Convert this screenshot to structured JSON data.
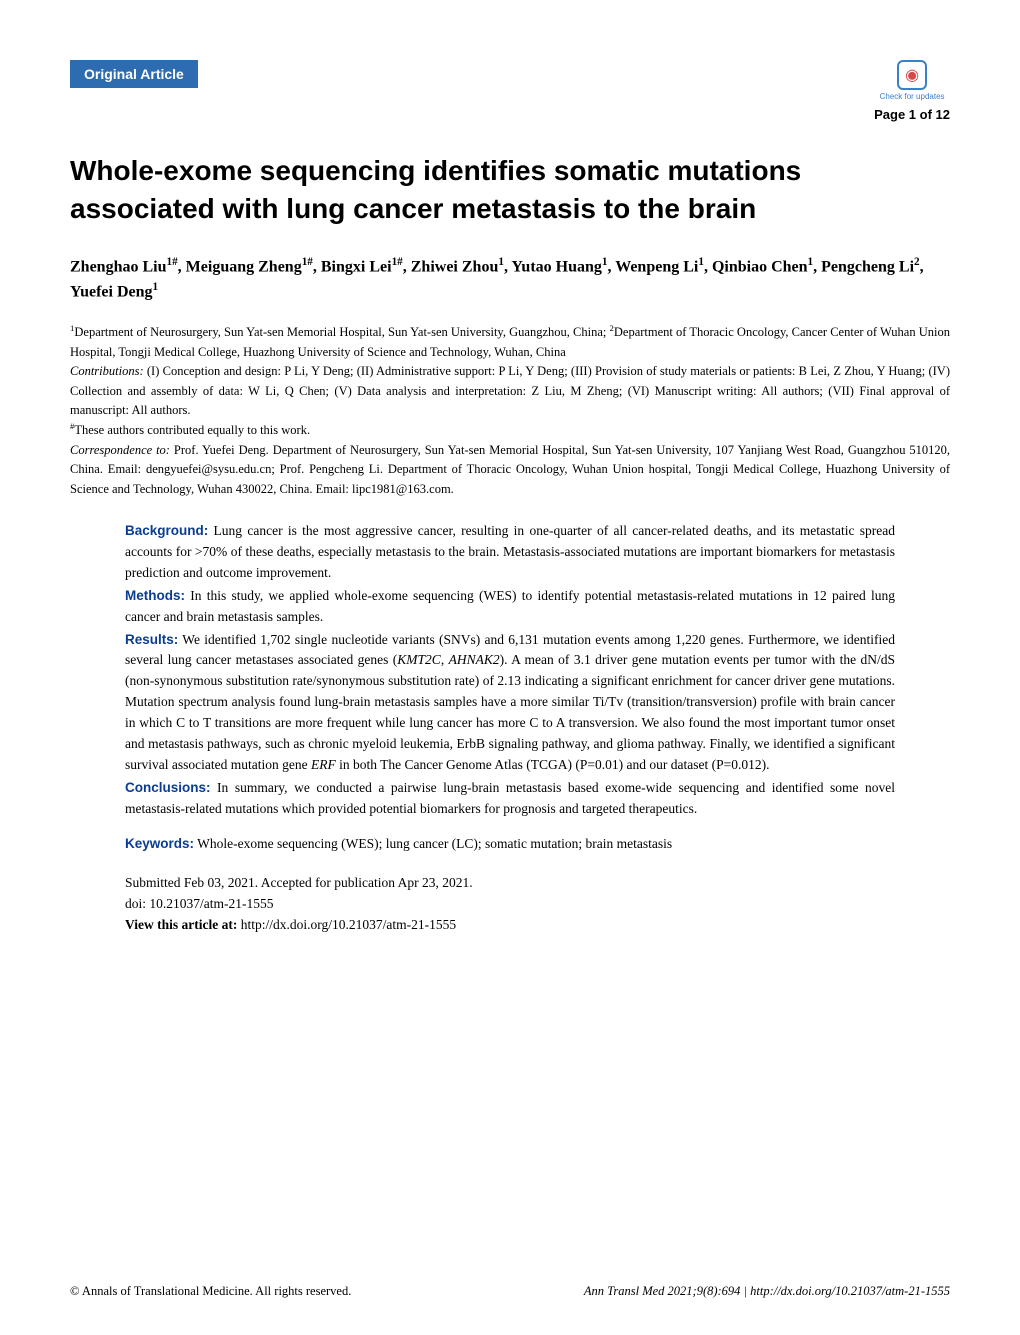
{
  "header": {
    "badge_label": "Original Article",
    "updates_label": "Check for updates",
    "page_indicator": "Page 1 of 12"
  },
  "title": "Whole-exome sequencing identifies somatic mutations associated with lung cancer metastasis to the brain",
  "authors_html": "Zhenghao Liu<sup>1#</sup>, Meiguang Zheng<sup>1#</sup>, Bingxi Lei<sup>1#</sup>, Zhiwei Zhou<sup>1</sup>, Yutao Huang<sup>1</sup>, Wenpeng Li<sup>1</sup>, Qinbiao Chen<sup>1</sup>, Pengcheng Li<sup>2</sup>, Yuefei Deng<sup>1</sup>",
  "affiliations": {
    "dept": "<sup>1</sup>Department of Neurosurgery, Sun Yat-sen Memorial Hospital, Sun Yat-sen University, Guangzhou, China; <sup>2</sup>Department of Thoracic Oncology, Cancer Center of Wuhan Union Hospital, Tongji Medical College, Huazhong University of Science and Technology, Wuhan, China",
    "contributions_label": "Contributions:",
    "contributions": " (I) Conception and design: P Li, Y Deng; (II) Administrative support: P Li, Y Deng; (III) Provision of study materials or patients: B Lei, Z Zhou, Y Huang; (IV) Collection and assembly of data: W Li, Q Chen; (V) Data analysis and interpretation: Z Liu, M Zheng; (VI) Manuscript writing: All authors; (VII) Final approval of manuscript: All authors.",
    "equal": "<sup>#</sup>These authors contributed equally to this work.",
    "correspondence_label": "Correspondence to:",
    "correspondence": " Prof. Yuefei Deng. Department of Neurosurgery, Sun Yat-sen Memorial Hospital, Sun Yat-sen University, 107 Yanjiang West Road, Guangzhou 510120, China. Email: dengyuefei@sysu.edu.cn; Prof. Pengcheng Li. Department of Thoracic Oncology, Wuhan Union hospital, Tongji Medical College, Huazhong University of Science and Technology, Wuhan 430022, China. Email: lipc1981@163.com."
  },
  "abstract": {
    "background_label": "Background:",
    "background": " Lung cancer is the most aggressive cancer, resulting in one-quarter of all cancer-related deaths, and its metastatic spread accounts for >70% of these deaths, especially metastasis to the brain. Metastasis-associated mutations are important biomarkers for metastasis prediction and outcome improvement.",
    "methods_label": "Methods:",
    "methods": " In this study, we applied whole-exome sequencing (WES) to identify potential metastasis-related mutations in 12 paired lung cancer and brain metastasis samples.",
    "results_label": "Results:",
    "results_html": " We identified 1,702 single nucleotide variants (SNVs) and 6,131 mutation events among 1,220 genes. Furthermore, we identified several lung cancer metastases associated genes (<span class=\"gene-italic\">KMT2C</span>, <span class=\"gene-italic\">AHNAK2</span>). A mean of 3.1 driver gene mutation events per tumor with the dN/dS (non-synonymous substitution rate/synonymous substitution rate) of 2.13 indicating a significant enrichment for cancer driver gene mutations. Mutation spectrum analysis found lung-brain metastasis samples have a more similar Ti/Tv (transition/transversion) profile with brain cancer in which C to T transitions are more frequent while lung cancer has more C to A transversion. We also found the most important tumor onset and metastasis pathways, such as chronic myeloid leukemia, ErbB signaling pathway, and glioma pathway. Finally, we identified a significant survival associated mutation gene <span class=\"gene-italic\">ERF</span> in both The Cancer Genome Atlas (TCGA) (P=0.01) and our dataset (P=0.012).",
    "conclusions_label": "Conclusions:",
    "conclusions": " In summary, we conducted a pairwise lung-brain metastasis based exome-wide sequencing and identified some novel metastasis-related mutations which provided potential biomarkers for prognosis and targeted therapeutics.",
    "keywords_label": "Keywords:",
    "keywords": " Whole-exome sequencing (WES); lung cancer (LC); somatic mutation; brain metastasis"
  },
  "meta": {
    "dates": "Submitted Feb 03, 2021. Accepted for publication Apr 23, 2021.",
    "doi": "doi: 10.21037/atm-21-1555",
    "view_label": "View this article at: ",
    "view_url": "http://dx.doi.org/10.21037/atm-21-1555"
  },
  "footer": {
    "copyright": "© Annals of Translational Medicine. All rights reserved.",
    "citation_html": "<span class=\"gene-italic\">Ann Transl Med</span> 2021;9(8):694 | http://dx.doi.org/10.21037/atm-21-1555"
  },
  "colors": {
    "badge_bg": "#2d6cb0",
    "badge_text": "#ffffff",
    "section_label": "#0a3d91",
    "body_text": "#000000",
    "updates_border": "#3a7fc9",
    "updates_icon": "#d94848"
  },
  "typography": {
    "title_fontsize": 28,
    "title_family": "Arial",
    "author_fontsize": 16,
    "body_fontsize": 13.5,
    "affiliation_fontsize": 12.5,
    "footer_fontsize": 12.5
  }
}
